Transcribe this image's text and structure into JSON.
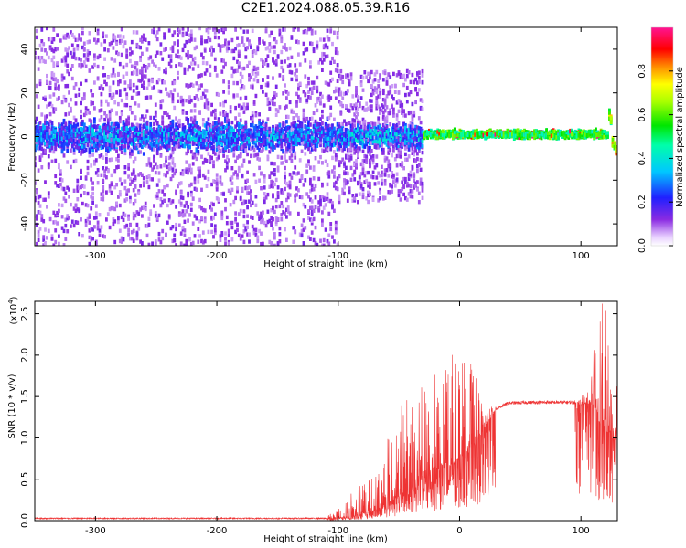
{
  "title": "C2E1.2024.088.05.39.R16",
  "chart_data": [
    {
      "type": "heatmap",
      "title": "C2E1.2024.088.05.39.R16",
      "xlabel": "Height of straight line (km)",
      "ylabel": "Frequency (Hz)",
      "xlim": [
        -350,
        130
      ],
      "ylim": [
        -50,
        50
      ],
      "x_ticks": [
        -300,
        -200,
        -100,
        0,
        100
      ],
      "y_ticks": [
        -40,
        -20,
        0,
        20,
        40
      ],
      "colorbar": {
        "label": "Normalized spectral amplitude",
        "range": [
          0,
          1
        ],
        "ticks": [
          "0.0",
          "0.2",
          "0.4",
          "0.6",
          "0.8"
        ],
        "colormap": "rainbow (white-purple-blue-cyan-green-yellow-red-magenta)"
      },
      "description_series": [
        {
          "x_range": [
            -350,
            -100
          ],
          "center_freq_hz": 0,
          "core_halfwidth_hz": 10,
          "scatter_halfwidth_hz": 50,
          "peak_amplitude": 0.4
        },
        {
          "x_range": [
            -100,
            -30
          ],
          "center_freq_hz": 0,
          "core_halfwidth_hz": 8,
          "scatter_halfwidth_hz": 30,
          "peak_amplitude": 0.45
        },
        {
          "x_range": [
            -30,
            125
          ],
          "center_freq_hz": 1,
          "core_halfwidth_hz": 3,
          "scatter_halfwidth_hz": 4,
          "peak_amplitude": 0.95
        },
        {
          "x_range": [
            125,
            130
          ],
          "center_freq_hz": -8,
          "core_halfwidth_hz": 4,
          "scatter_halfwidth_hz": 5,
          "peak_amplitude": 0.7
        }
      ]
    },
    {
      "type": "line",
      "xlabel": "Height of straight line (km)",
      "ylabel": "SNR (10 * v/v)",
      "y_multiplier_label": "(x10",
      "y_multiplier_exp": "4",
      "xlim": [
        -350,
        130
      ],
      "ylim": [
        0,
        2.65
      ],
      "x_ticks": [
        -300,
        -200,
        -100,
        0,
        100
      ],
      "y_ticks": [
        "0.0",
        "0.5",
        "1.0",
        "1.5",
        "2.0",
        "2.5"
      ],
      "color": "#ee3333",
      "envelope": {
        "x": [
          -350,
          -110,
          -100,
          -90,
          -80,
          -70,
          -60,
          -50,
          -40,
          -30,
          -20,
          -10,
          0,
          10,
          20,
          30,
          40,
          60,
          80,
          95,
          100,
          105,
          110,
          115,
          120,
          125,
          130
        ],
        "baseline": [
          0.02,
          0.02,
          0.03,
          0.05,
          0.08,
          0.12,
          0.2,
          0.3,
          0.4,
          0.5,
          0.6,
          0.65,
          0.75,
          0.85,
          1.1,
          1.35,
          1.42,
          1.43,
          1.43,
          1.43,
          1.4,
          1.42,
          1.4,
          1.2,
          1.1,
          1.0,
          0.9
        ],
        "peak": [
          0.03,
          0.05,
          0.15,
          0.35,
          0.55,
          0.7,
          1.0,
          1.35,
          1.6,
          1.75,
          2.25,
          1.9,
          2.25,
          1.9,
          1.4,
          1.42,
          1.46,
          1.46,
          1.46,
          1.46,
          1.5,
          1.6,
          2.0,
          2.65,
          2.6,
          2.2,
          1.95
        ]
      }
    }
  ]
}
